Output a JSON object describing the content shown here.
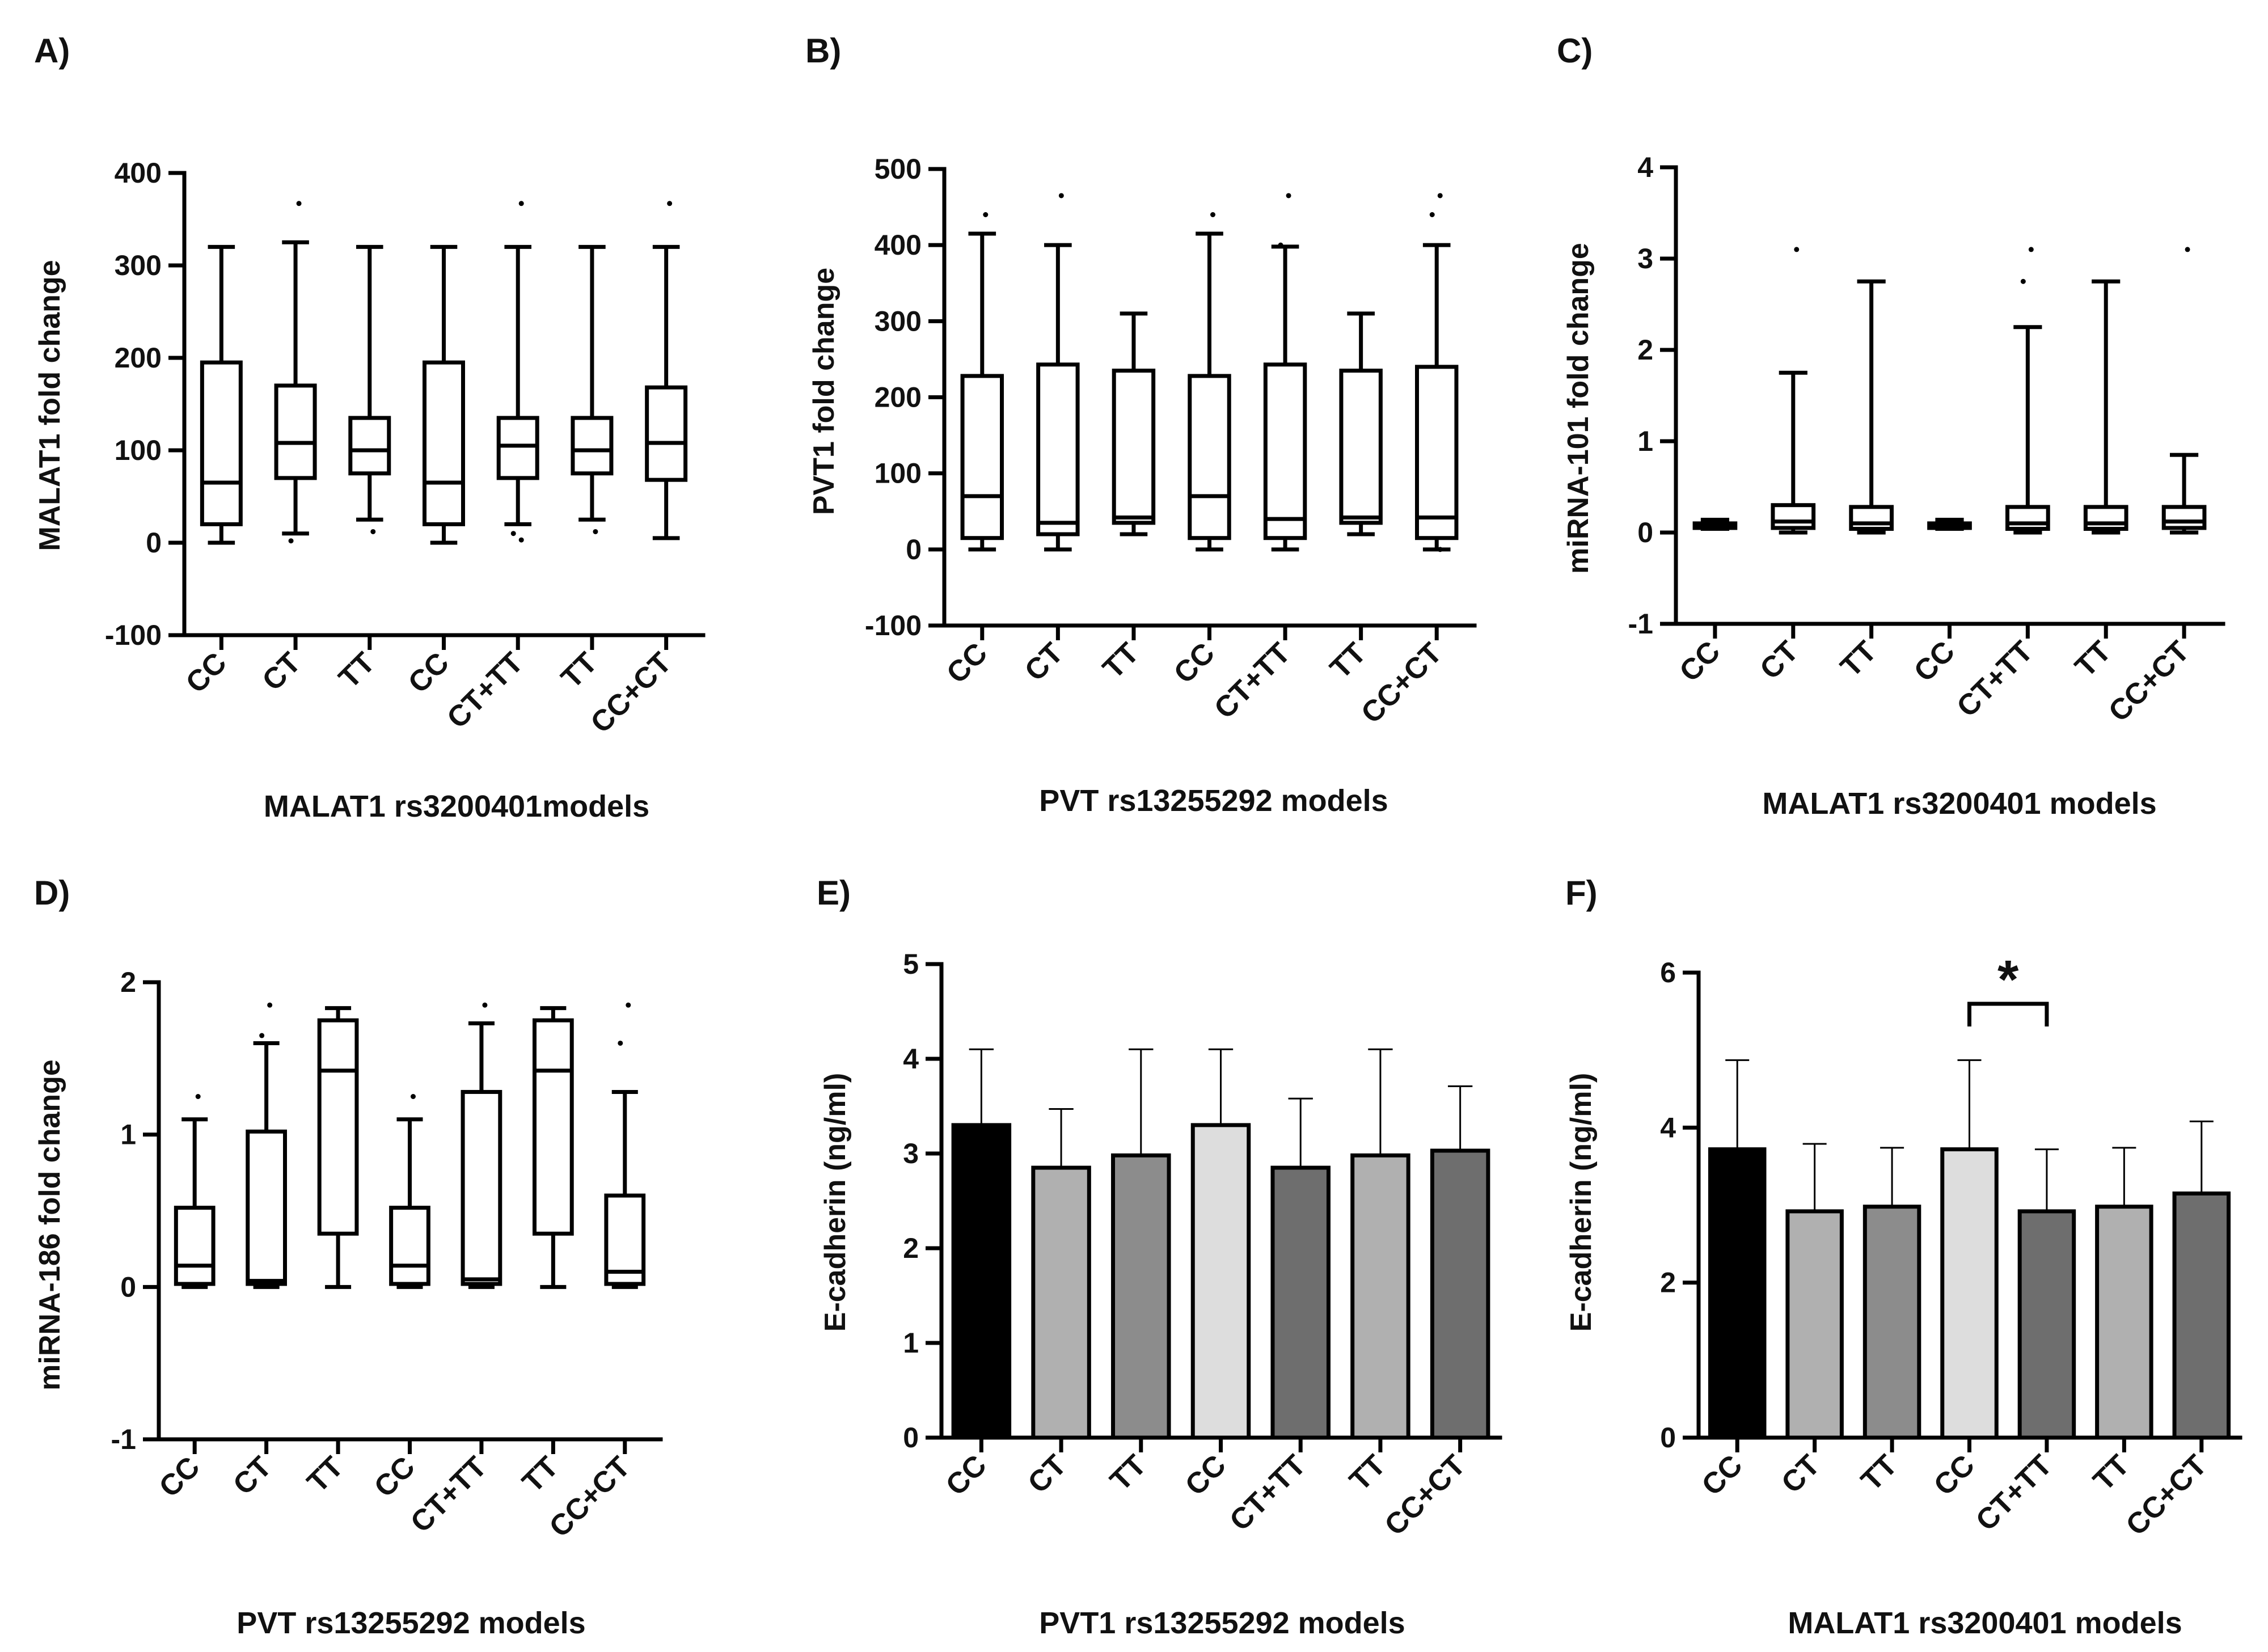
{
  "chart_data": [
    {
      "panel": "A)",
      "type": "box",
      "ylabel": "MALAT1 fold change",
      "xlabel": "MALAT1 rs3200401models",
      "ylim": [
        -100,
        400
      ],
      "yticks": [
        -100,
        0,
        100,
        200,
        300,
        400
      ],
      "categories": [
        "CC",
        "CT",
        "TT",
        "CC",
        "CT+TT",
        "TT",
        "CC+CT"
      ],
      "boxes": [
        {
          "min": 0,
          "q1": 20,
          "median": 65,
          "q3": 195,
          "max": 320,
          "outliers": []
        },
        {
          "min": 10,
          "q1": 70,
          "median": 108,
          "q3": 170,
          "max": 325,
          "outliers": [
            367,
            2
          ]
        },
        {
          "min": 25,
          "q1": 75,
          "median": 100,
          "q3": 135,
          "max": 320,
          "outliers": [
            12
          ]
        },
        {
          "min": 0,
          "q1": 20,
          "median": 65,
          "q3": 195,
          "max": 320,
          "outliers": []
        },
        {
          "min": 20,
          "q1": 70,
          "median": 105,
          "q3": 135,
          "max": 320,
          "outliers": [
            367,
            10,
            3
          ]
        },
        {
          "min": 25,
          "q1": 75,
          "median": 100,
          "q3": 135,
          "max": 320,
          "outliers": [
            12
          ]
        },
        {
          "min": 5,
          "q1": 68,
          "median": 108,
          "q3": 168,
          "max": 320,
          "outliers": [
            367
          ]
        }
      ]
    },
    {
      "panel": "B)",
      "type": "box",
      "ylabel": "PVT1 fold change",
      "xlabel": "PVT rs13255292 models",
      "ylim": [
        -100,
        500
      ],
      "yticks": [
        -100,
        0,
        100,
        200,
        300,
        400,
        500
      ],
      "categories": [
        "CC",
        "CT",
        "TT",
        "CC",
        "CT+TT",
        "TT",
        "CC+CT"
      ],
      "boxes": [
        {
          "min": 0,
          "q1": 15,
          "median": 70,
          "q3": 228,
          "max": 415,
          "outliers": [
            440
          ]
        },
        {
          "min": 0,
          "q1": 20,
          "median": 35,
          "q3": 243,
          "max": 400,
          "outliers": [
            465
          ]
        },
        {
          "min": 20,
          "q1": 35,
          "median": 42,
          "q3": 235,
          "max": 310,
          "outliers": []
        },
        {
          "min": 0,
          "q1": 15,
          "median": 70,
          "q3": 228,
          "max": 415,
          "outliers": [
            440
          ]
        },
        {
          "min": 0,
          "q1": 15,
          "median": 40,
          "q3": 243,
          "max": 398,
          "outliers": [
            465,
            400
          ]
        },
        {
          "min": 20,
          "q1": 35,
          "median": 42,
          "q3": 235,
          "max": 310,
          "outliers": []
        },
        {
          "min": 0,
          "q1": 15,
          "median": 42,
          "q3": 240,
          "max": 400,
          "outliers": [
            465,
            440,
            0
          ]
        }
      ]
    },
    {
      "panel": "C)",
      "type": "box",
      "ylabel": "miRNA-101 fold change",
      "xlabel": "MALAT1 rs3200401 models",
      "ylim": [
        -1,
        4
      ],
      "yticks": [
        -1,
        0,
        1,
        2,
        3,
        4
      ],
      "categories": [
        "CC",
        "CT",
        "TT",
        "CC",
        "CT+TT",
        "TT",
        "CC+CT"
      ],
      "boxes": [
        {
          "min": 0.04,
          "q1": 0.05,
          "median": 0.07,
          "q3": 0.1,
          "max": 0.14,
          "outliers": []
        },
        {
          "min": 0.0,
          "q1": 0.05,
          "median": 0.12,
          "q3": 0.3,
          "max": 1.75,
          "outliers": [
            3.1
          ]
        },
        {
          "min": 0.0,
          "q1": 0.04,
          "median": 0.1,
          "q3": 0.28,
          "max": 2.75,
          "outliers": []
        },
        {
          "min": 0.04,
          "q1": 0.05,
          "median": 0.07,
          "q3": 0.1,
          "max": 0.14,
          "outliers": []
        },
        {
          "min": 0.0,
          "q1": 0.04,
          "median": 0.1,
          "q3": 0.28,
          "max": 2.25,
          "outliers": [
            3.1,
            2.75
          ]
        },
        {
          "min": 0.0,
          "q1": 0.04,
          "median": 0.1,
          "q3": 0.28,
          "max": 2.75,
          "outliers": []
        },
        {
          "min": 0.0,
          "q1": 0.05,
          "median": 0.12,
          "q3": 0.28,
          "max": 0.85,
          "outliers": [
            3.1
          ]
        }
      ]
    },
    {
      "panel": "D)",
      "type": "box",
      "ylabel": "miRNA-186 fold change",
      "xlabel": "PVT rs13255292 models",
      "ylim": [
        -1,
        2
      ],
      "yticks": [
        -1,
        0,
        1,
        2
      ],
      "categories": [
        "CC",
        "CT",
        "TT",
        "CC",
        "CT+TT",
        "TT",
        "CC+CT"
      ],
      "boxes": [
        {
          "min": 0.0,
          "q1": 0.02,
          "median": 0.14,
          "q3": 0.52,
          "max": 1.1,
          "outliers": [
            1.25
          ]
        },
        {
          "min": 0.0,
          "q1": 0.02,
          "median": 0.04,
          "q3": 1.02,
          "max": 1.6,
          "outliers": [
            1.85,
            1.65
          ]
        },
        {
          "min": 0.0,
          "q1": 0.35,
          "median": 1.42,
          "q3": 1.75,
          "max": 1.83,
          "outliers": []
        },
        {
          "min": 0.0,
          "q1": 0.02,
          "median": 0.14,
          "q3": 0.52,
          "max": 1.1,
          "outliers": [
            1.25
          ]
        },
        {
          "min": 0.0,
          "q1": 0.02,
          "median": 0.05,
          "q3": 1.28,
          "max": 1.73,
          "outliers": [
            1.85
          ]
        },
        {
          "min": 0.0,
          "q1": 0.35,
          "median": 1.42,
          "q3": 1.75,
          "max": 1.83,
          "outliers": []
        },
        {
          "min": 0.0,
          "q1": 0.02,
          "median": 0.1,
          "q3": 0.6,
          "max": 1.28,
          "outliers": [
            1.85,
            1.6
          ]
        }
      ]
    },
    {
      "panel": "E)",
      "type": "bar",
      "ylabel": "E-cadherin (ng/ml)",
      "xlabel": "PVT1 rs13255292 models",
      "ylim": [
        0,
        5
      ],
      "yticks": [
        0,
        1,
        2,
        3,
        4,
        5
      ],
      "categories": [
        "CC",
        "CT",
        "TT",
        "CC",
        "CT+TT",
        "TT",
        "CC+CT"
      ],
      "values": [
        3.3,
        2.85,
        2.98,
        3.3,
        2.85,
        2.98,
        3.03
      ],
      "errors": [
        0.8,
        0.62,
        1.12,
        0.8,
        0.73,
        1.12,
        0.68
      ],
      "colors": [
        "#000000",
        "#b0b0b0",
        "#8c8c8c",
        "#dddddd",
        "#6e6e6e",
        "#b0b0b0",
        "#6e6e6e"
      ]
    },
    {
      "panel": "F)",
      "type": "bar",
      "ylabel": "E-cadherin (ng/ml)",
      "xlabel": "MALAT1 rs3200401 models",
      "ylim": [
        0,
        6
      ],
      "yticks": [
        0,
        2,
        4,
        6
      ],
      "categories": [
        "CC",
        "CT",
        "TT",
        "CC",
        "CT+TT",
        "TT",
        "CC+CT"
      ],
      "values": [
        3.72,
        2.92,
        2.98,
        3.72,
        2.92,
        2.98,
        3.15
      ],
      "errors": [
        1.15,
        0.87,
        0.76,
        1.15,
        0.8,
        0.76,
        0.93
      ],
      "colors": [
        "#000000",
        "#b0b0b0",
        "#8c8c8c",
        "#dddddd",
        "#6e6e6e",
        "#b0b0b0",
        "#6e6e6e"
      ],
      "annotation": {
        "text": "*",
        "from": 3,
        "to": 4
      }
    }
  ]
}
